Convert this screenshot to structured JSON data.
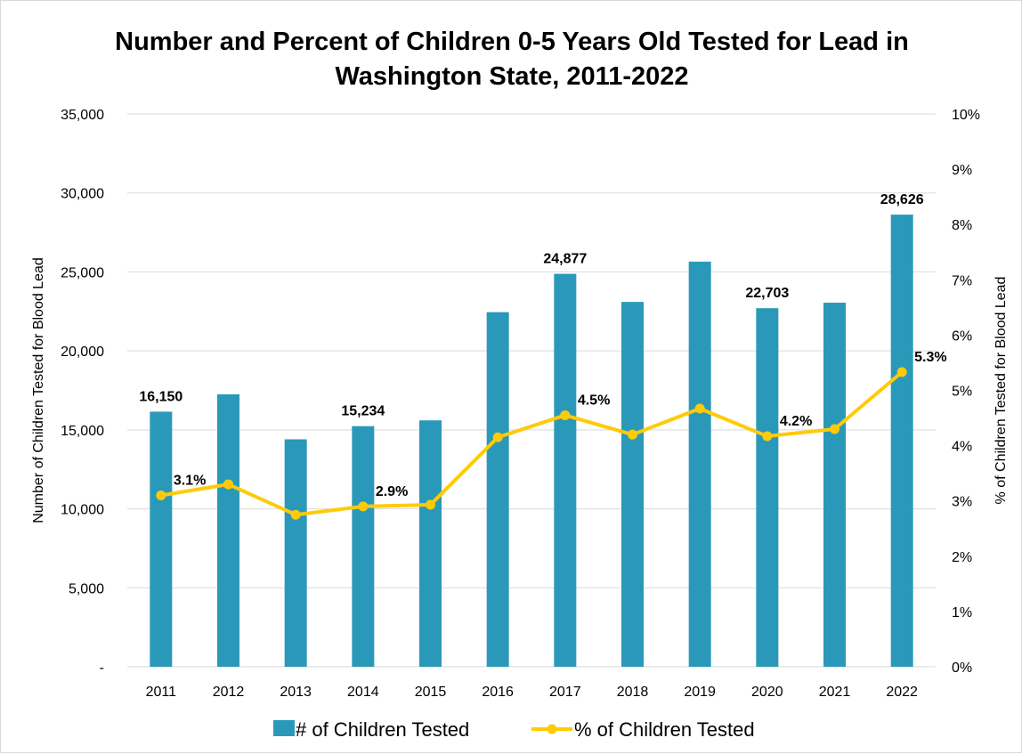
{
  "chart_data": {
    "type": "bar",
    "title_lines": [
      "Number and Percent of Children 0-5 Years Old Tested for Lead in",
      "Washington State, 2011-2022"
    ],
    "categories": [
      "2011",
      "2012",
      "2013",
      "2014",
      "2015",
      "2016",
      "2017",
      "2018",
      "2019",
      "2020",
      "2021",
      "2022"
    ],
    "series": [
      {
        "name": "# of Children Tested",
        "type": "bar",
        "axis": "left",
        "color": "#2a99b9",
        "values": [
          16150,
          17250,
          14400,
          15234,
          15600,
          22450,
          24877,
          23100,
          25650,
          22703,
          23050,
          28626
        ]
      },
      {
        "name": "% of Children Tested",
        "type": "line",
        "axis": "right",
        "color": "#ffca08",
        "values": [
          3.1,
          3.3,
          2.75,
          2.9,
          2.93,
          4.15,
          4.55,
          4.2,
          4.67,
          4.17,
          4.3,
          5.33
        ]
      }
    ],
    "ylabel": "Number of Children Tested for Blood Lead",
    "ylabel_right": "% of Children Tested for Blood Lead",
    "ylim": [
      0,
      35000
    ],
    "ylim_right": [
      0,
      10
    ],
    "yticks": [
      "-",
      "5,000",
      "10,000",
      "15,000",
      "20,000",
      "25,000",
      "30,000",
      "35,000"
    ],
    "yticks_right": [
      "0%",
      "1%",
      "2%",
      "3%",
      "4%",
      "5%",
      "6%",
      "7%",
      "8%",
      "9%",
      "10%"
    ],
    "bar_labels": [
      {
        "index": 0,
        "text": "16,150"
      },
      {
        "index": 3,
        "text": "15,234"
      },
      {
        "index": 6,
        "text": "24,877"
      },
      {
        "index": 9,
        "text": "22,703"
      },
      {
        "index": 11,
        "text": "28,626"
      }
    ],
    "line_labels": [
      {
        "index": 0,
        "text": "3.1%"
      },
      {
        "index": 3,
        "text": "2.9%"
      },
      {
        "index": 6,
        "text": "4.5%"
      },
      {
        "index": 9,
        "text": "4.2%"
      },
      {
        "index": 11,
        "text": "5.3%"
      }
    ],
    "grid": true,
    "legend_position": "bottom"
  }
}
